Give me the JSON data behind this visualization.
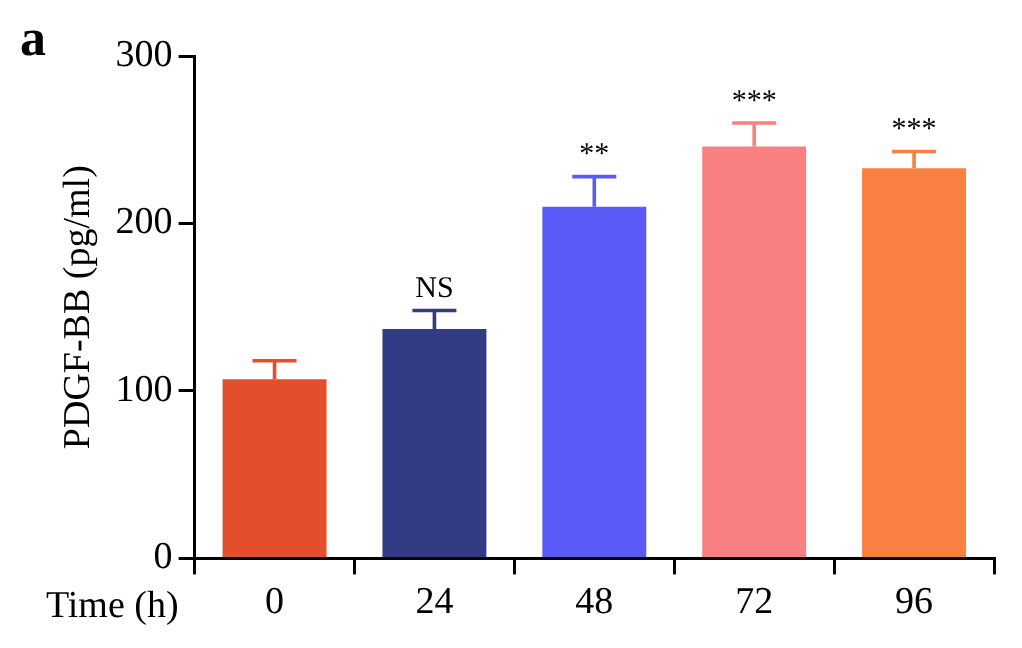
{
  "chart_data": {
    "type": "bar",
    "ylabel": "PDGF-BB (pg/ml)",
    "xlabel": "Time (h)",
    "categories": [
      "0",
      "24",
      "48",
      "72",
      "96"
    ],
    "values": [
      107,
      137,
      210,
      246,
      233
    ],
    "errors": [
      11,
      11,
      18,
      14,
      10
    ],
    "colors": [
      "#e34f2a",
      "#343b85",
      "#5a5af8",
      "#f98080",
      "#f98040"
    ],
    "ylim": [
      0,
      300
    ],
    "yticks": [
      0,
      100,
      200,
      300
    ],
    "grid": false,
    "legend": false,
    "annotations": [
      "a",
      {
        "text": "NS",
        "x": "24",
        "y": 148
      },
      {
        "text": "**",
        "x": "48",
        "y": 228
      },
      {
        "text": "***",
        "x": "72",
        "y": 260
      },
      {
        "text": "***",
        "x": "96",
        "y": 243
      }
    ]
  }
}
